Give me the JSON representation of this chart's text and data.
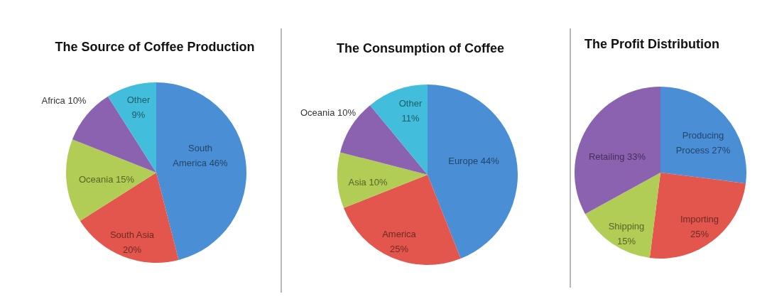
{
  "chart_data": [
    {
      "type": "pie",
      "title": "The Source of Coffee Production",
      "categories": [
        "South America",
        "South Asia",
        "Oceania",
        "Africa",
        "Other"
      ],
      "values": [
        46,
        20,
        15,
        10,
        9
      ],
      "value_labels": [
        "46%",
        "20%",
        "15%",
        "10%",
        "9%"
      ],
      "colors": [
        "#4a8ed6",
        "#e2564d",
        "#b2cd55",
        "#8a62b0",
        "#42bddb"
      ]
    },
    {
      "type": "pie",
      "title": "The Consumption of Coffee",
      "categories": [
        "Europe",
        "America",
        "Asia",
        "Oceania",
        "Other"
      ],
      "values": [
        44,
        25,
        10,
        10,
        11
      ],
      "value_labels": [
        "44%",
        "25%",
        "10%",
        "10%",
        "11%"
      ],
      "colors": [
        "#4a8ed6",
        "#e2564d",
        "#b2cd55",
        "#8a62b0",
        "#42bddb"
      ]
    },
    {
      "type": "pie",
      "title": "The Profit Distribution",
      "categories": [
        "Producing Process",
        "Importing",
        "Shipping",
        "Retailing"
      ],
      "values": [
        27,
        25,
        15,
        33
      ],
      "value_labels": [
        "27%",
        "25%",
        "15%",
        "33%"
      ],
      "colors": [
        "#4a8ed6",
        "#e2564d",
        "#b2cd55",
        "#8a62b0"
      ]
    }
  ]
}
